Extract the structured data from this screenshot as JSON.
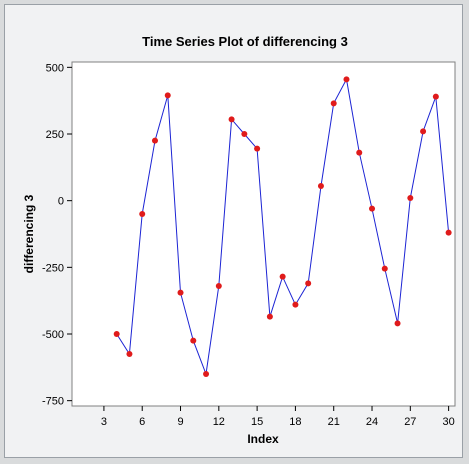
{
  "chart_data": {
    "type": "line",
    "title": "Time Series Plot of differencing 3",
    "xlabel": "Index",
    "ylabel": "differencing 3",
    "xlim": [
      0.5,
      30.5
    ],
    "ylim": [
      -770,
      520
    ],
    "x_ticks": [
      3,
      6,
      9,
      12,
      15,
      18,
      21,
      24,
      27,
      30
    ],
    "y_ticks": [
      500,
      250,
      0,
      -250,
      -500,
      -750
    ],
    "grid": false,
    "series": [
      {
        "x": [
          4,
          5,
          6,
          7,
          8,
          9,
          10,
          11,
          12,
          13,
          14,
          15,
          16,
          17,
          18,
          19,
          20,
          21,
          22,
          23,
          24,
          25,
          26,
          27,
          28,
          29,
          30
        ],
        "values": [
          -500,
          -575,
          -50,
          225,
          395,
          -345,
          -525,
          -650,
          -320,
          305,
          250,
          195,
          -435,
          -285,
          -390,
          -310,
          55,
          365,
          455,
          180,
          -30,
          -255,
          -460,
          10,
          260,
          390,
          -120
        ],
        "line_color": "#1c24d4",
        "marker_color": "#e01b1b"
      }
    ]
  }
}
